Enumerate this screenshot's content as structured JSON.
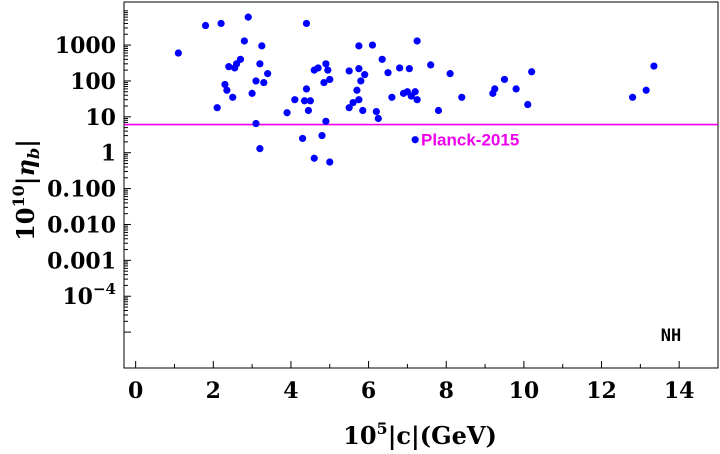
{
  "chart_data": {
    "type": "scatter",
    "xlabel": "10⁵|c|(GeV)",
    "ylabel": "10¹⁰|η_b|",
    "xlim": [
      -0.3,
      15
    ],
    "ylim_log10": [
      -6,
      4.2
    ],
    "y_scale": "log",
    "x_ticks": [
      0,
      2,
      4,
      6,
      8,
      10,
      12,
      14
    ],
    "x_tick_labels": [
      "0",
      "2",
      "4",
      "6",
      "8",
      "10",
      "12",
      "14"
    ],
    "y_ticks": [
      {
        "exp": 3,
        "label": "1000"
      },
      {
        "exp": 2,
        "label": "100"
      },
      {
        "exp": 1,
        "label": "10"
      },
      {
        "exp": 0,
        "label": "1"
      },
      {
        "exp": -1,
        "label": "0.100"
      },
      {
        "exp": -2,
        "label": "0.010"
      },
      {
        "exp": -3,
        "label": "0.001"
      },
      {
        "exp": -4,
        "label": "10⁻⁴"
      }
    ],
    "grid": false,
    "point_color": "#0000ff",
    "reference_line": {
      "y": 6.1,
      "label": "Planck-2015",
      "color": "#ee00ee"
    },
    "corner_label": "NH",
    "points": [
      [
        1.1,
        600
      ],
      [
        1.8,
        3500
      ],
      [
        2.2,
        4000
      ],
      [
        2.1,
        18
      ],
      [
        2.3,
        80
      ],
      [
        2.35,
        55
      ],
      [
        2.4,
        250
      ],
      [
        2.5,
        35
      ],
      [
        2.55,
        230
      ],
      [
        2.6,
        300
      ],
      [
        2.7,
        400
      ],
      [
        2.8,
        1300
      ],
      [
        2.9,
        6000
      ],
      [
        3.0,
        45
      ],
      [
        3.1,
        100
      ],
      [
        3.1,
        6.5
      ],
      [
        3.2,
        1.3
      ],
      [
        3.2,
        300
      ],
      [
        3.25,
        950
      ],
      [
        3.3,
        90
      ],
      [
        3.4,
        160
      ],
      [
        3.9,
        13
      ],
      [
        4.1,
        30
      ],
      [
        4.3,
        2.5
      ],
      [
        4.35,
        28
      ],
      [
        4.4,
        60
      ],
      [
        4.4,
        4000
      ],
      [
        4.45,
        15
      ],
      [
        4.5,
        28
      ],
      [
        4.6,
        0.7
      ],
      [
        4.6,
        200
      ],
      [
        4.7,
        230
      ],
      [
        4.8,
        3.0
      ],
      [
        4.85,
        90
      ],
      [
        4.9,
        7.5
      ],
      [
        4.9,
        300
      ],
      [
        4.95,
        200
      ],
      [
        5.0,
        110
      ],
      [
        5.0,
        0.55
      ],
      [
        5.5,
        18
      ],
      [
        5.5,
        190
      ],
      [
        5.6,
        25
      ],
      [
        5.7,
        55
      ],
      [
        5.75,
        30
      ],
      [
        5.75,
        950
      ],
      [
        5.75,
        220
      ],
      [
        5.8,
        100
      ],
      [
        5.85,
        15
      ],
      [
        5.9,
        150
      ],
      [
        6.1,
        1000
      ],
      [
        6.2,
        14
      ],
      [
        6.25,
        9
      ],
      [
        6.35,
        400
      ],
      [
        6.5,
        170
      ],
      [
        6.6,
        35
      ],
      [
        6.8,
        230
      ],
      [
        6.9,
        45
      ],
      [
        7.0,
        50
      ],
      [
        7.05,
        220
      ],
      [
        7.1,
        38
      ],
      [
        7.2,
        2.3
      ],
      [
        7.2,
        50
      ],
      [
        7.25,
        1300
      ],
      [
        7.25,
        30
      ],
      [
        7.6,
        280
      ],
      [
        7.8,
        15
      ],
      [
        8.1,
        160
      ],
      [
        8.4,
        35
      ],
      [
        9.2,
        45
      ],
      [
        9.25,
        60
      ],
      [
        9.5,
        110
      ],
      [
        9.8,
        60
      ],
      [
        10.1,
        22
      ],
      [
        10.2,
        180
      ],
      [
        12.8,
        35
      ],
      [
        13.15,
        55
      ],
      [
        13.35,
        260
      ]
    ]
  }
}
